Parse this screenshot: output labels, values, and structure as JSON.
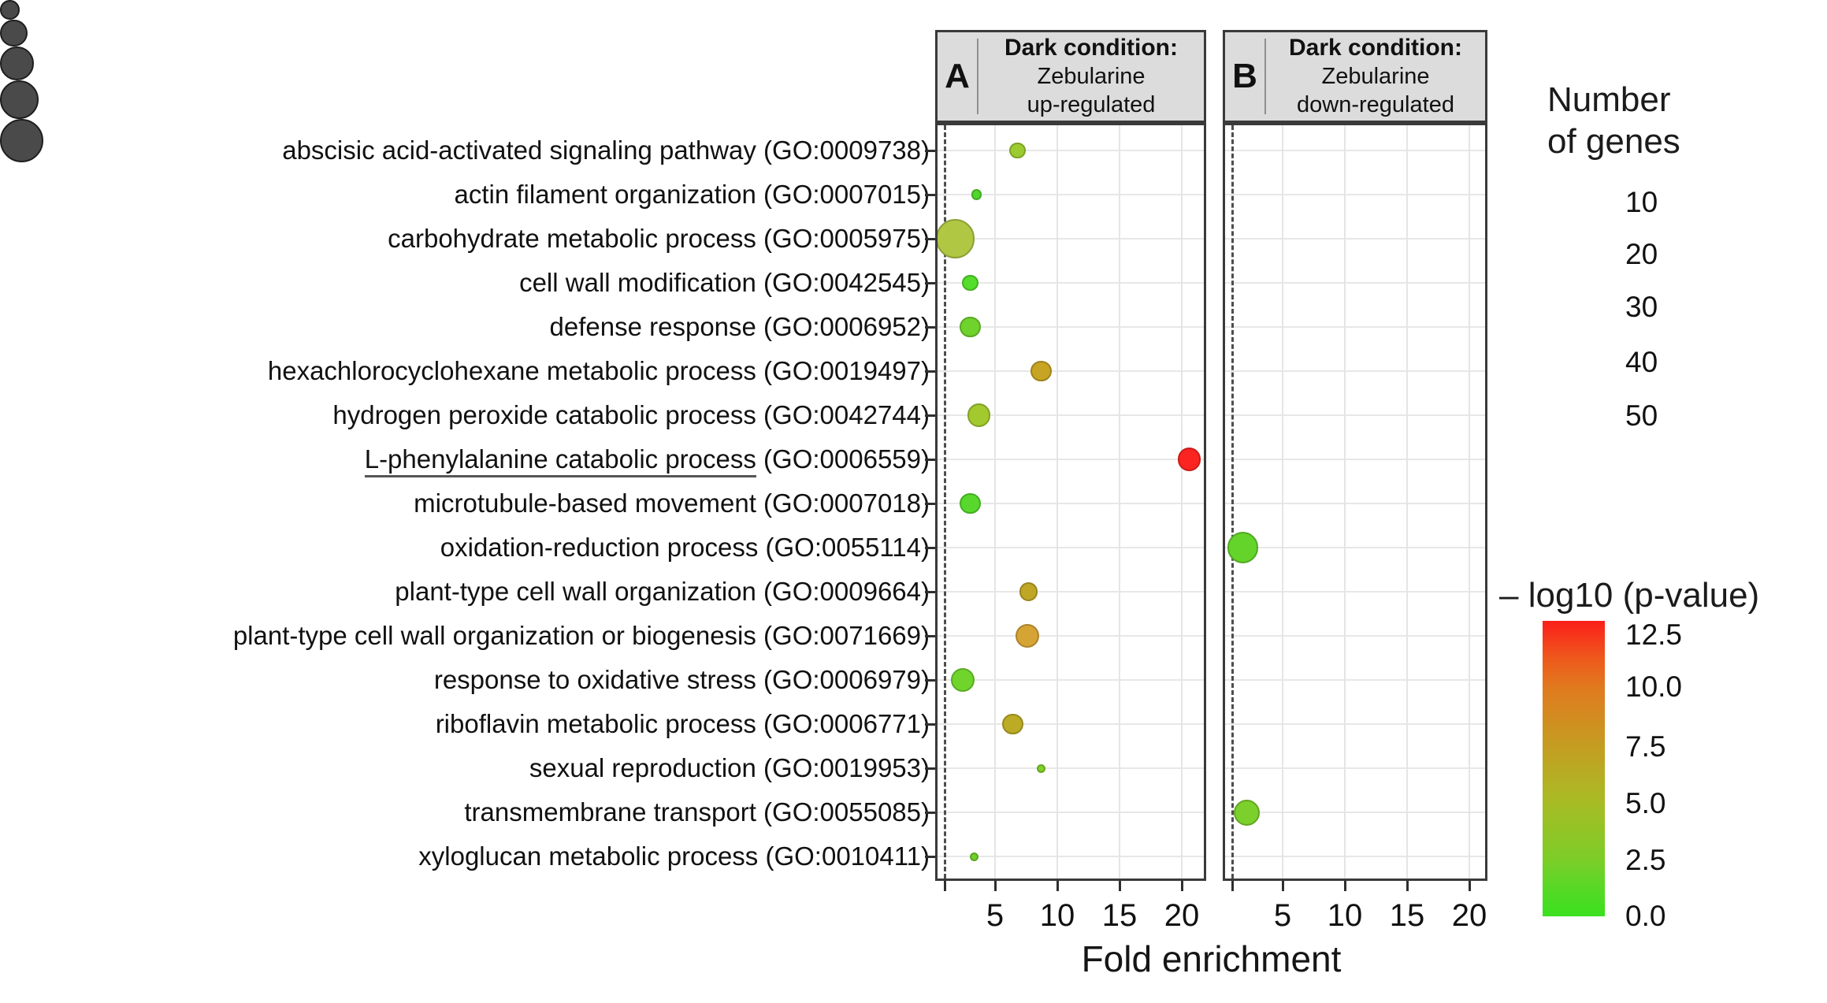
{
  "figure": {
    "xlabel": "Fold enrichment",
    "panels": [
      {
        "id": "A",
        "title_lines": [
          "Dark condition:",
          "Zebularine",
          "up-regulated"
        ]
      },
      {
        "id": "B",
        "title_lines": [
          "Dark condition:",
          "Zebularine",
          "down-regulated"
        ]
      }
    ],
    "size_legend": {
      "title_lines": [
        "Number",
        "of genes"
      ],
      "entries": [
        10,
        20,
        30,
        40,
        50
      ],
      "dot_color": "#4a4a4a"
    },
    "color_legend": {
      "title": "– log10 (p-value)",
      "ticks": [
        "12.5",
        "10.0",
        "7.5",
        "5.0",
        "2.5",
        "0.0"
      ],
      "range": [
        0,
        12.5
      ],
      "gradient": [
        "#fb1f1a 0%",
        "#ee5a1c 13%",
        "#e07b1f 23%",
        "#c59c21 42%",
        "#a9bb25 61%",
        "#7ccd28 81%",
        "#55d925 91%",
        "#3be01e 100%"
      ]
    }
  },
  "chart_data": {
    "type": "scatter",
    "subtype": "bubble-dot-plot, 2 facets sharing y axis",
    "xlabel": "Fold enrichment",
    "x_ticks": [
      5,
      10,
      15,
      20
    ],
    "x_range": [
      0.5,
      22
    ],
    "reference_line_x": 1,
    "size_encoding": "Number of genes (area-proportional, legend 10-50)",
    "color_encoding": "-log10(p-value): 0 = green, 12.5 = red",
    "facet_A": "Dark condition: Zebularine up-regulated",
    "facet_B": "Dark condition: Zebularine down-regulated",
    "terms": [
      {
        "label": "abscisic acid-activated signaling pathway",
        "go": "GO:0009738",
        "panel": "A",
        "fold": 6.8,
        "genes": 7,
        "neg_log10_p": 4.0,
        "color": "#9ccb31"
      },
      {
        "label": "actin filament organization",
        "go": "GO:0007015",
        "panel": "A",
        "fold": 3.5,
        "genes": 3,
        "neg_log10_p": 1.5,
        "color": "#52d62b"
      },
      {
        "label": "carbohydrate metabolic process",
        "go": "GO:0005975",
        "panel": "A",
        "fold": 1.8,
        "genes": 40,
        "neg_log10_p": 4.5,
        "color": "#b0c744"
      },
      {
        "label": "cell wall modification",
        "go": "GO:0042545",
        "panel": "A",
        "fold": 3.0,
        "genes": 7,
        "neg_log10_p": 1.2,
        "color": "#55dd2b"
      },
      {
        "label": "defense response",
        "go": "GO:0006952",
        "panel": "A",
        "fold": 3.0,
        "genes": 12,
        "neg_log10_p": 2.2,
        "color": "#70d22c"
      },
      {
        "label": "hexachlorocyclohexane metabolic process",
        "go": "GO:0019497",
        "panel": "A",
        "fold": 8.7,
        "genes": 12,
        "neg_log10_p": 7.0,
        "color": "#c7a423"
      },
      {
        "label": "hydrogen peroxide catabolic process",
        "go": "GO:0042744",
        "panel": "A",
        "fold": 3.7,
        "genes": 14,
        "neg_log10_p": 4.2,
        "color": "#a2c92e"
      },
      {
        "label": "L-phenylalanine catabolic process",
        "go": "GO:0006559",
        "panel": "A",
        "fold": 20.6,
        "genes": 14,
        "neg_log10_p": 12.5,
        "color": "#fb2420",
        "underline": true
      },
      {
        "label": "microtubule-based movement",
        "go": "GO:0007018",
        "panel": "A",
        "fold": 3.0,
        "genes": 12,
        "neg_log10_p": 1.8,
        "color": "#58d82c"
      },
      {
        "label": "oxidation-reduction process",
        "go": "GO:0055114",
        "panel": "B",
        "fold": 1.8,
        "genes": 26,
        "neg_log10_p": 1.8,
        "color": "#64d32a"
      },
      {
        "label": "plant-type cell wall organization",
        "go": "GO:0009664",
        "panel": "A",
        "fold": 7.7,
        "genes": 9,
        "neg_log10_p": 6.8,
        "color": "#bfa625"
      },
      {
        "label": "plant-type cell wall organization or biogenesis",
        "go": "GO:0071669",
        "panel": "A",
        "fold": 7.6,
        "genes": 15,
        "neg_log10_p": 7.6,
        "color": "#d6a435"
      },
      {
        "label": "response to oxidative stress",
        "go": "GO:0006979",
        "panel": "A",
        "fold": 2.4,
        "genes": 15,
        "neg_log10_p": 2.0,
        "color": "#6fd52c"
      },
      {
        "label": "riboflavin metabolic process",
        "go": "GO:0006771",
        "panel": "A",
        "fold": 6.4,
        "genes": 12,
        "neg_log10_p": 6.0,
        "color": "#bcab24"
      },
      {
        "label": "sexual reproduction",
        "go": "GO:0019953",
        "panel": "A",
        "fold": 8.7,
        "genes": 2,
        "neg_log10_p": 2.8,
        "color": "#7fd02b"
      },
      {
        "label": "transmembrane transport",
        "go": "GO:0055085",
        "panel": "B",
        "fold": 2.1,
        "genes": 18,
        "neg_log10_p": 2.6,
        "color": "#7cd02c"
      },
      {
        "label": "xyloglucan metabolic process",
        "go": "GO:0010411",
        "panel": "A",
        "fold": 3.3,
        "genes": 2,
        "neg_log10_p": 2.7,
        "color": "#70cf2a"
      }
    ]
  }
}
